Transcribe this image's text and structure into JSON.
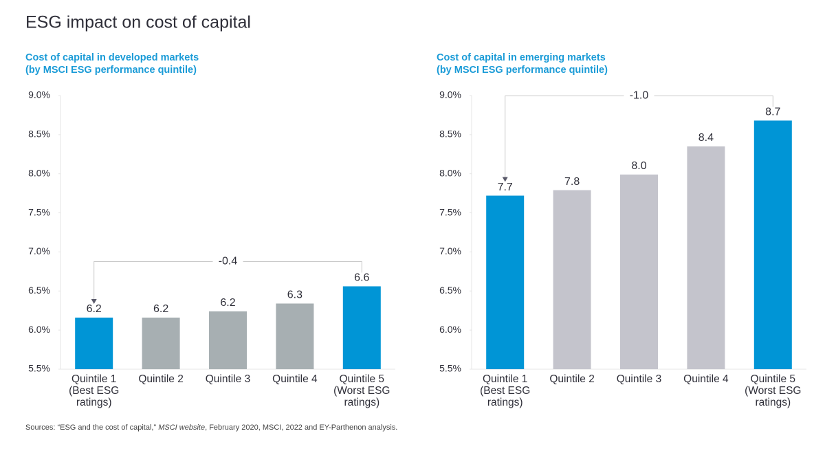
{
  "title": "ESG impact on cost of capital",
  "chart_data": [
    {
      "type": "bar",
      "subtitle": [
        "Cost of capital in developed markets",
        "(by MSCI ESG performance quintile)"
      ],
      "categories": [
        "Quintile 1 (Best ESG ratings)",
        "Quintile 2",
        "Quintile 3",
        "Quintile 4",
        "Quintile 5 (Worst ESG ratings)"
      ],
      "values": [
        6.16,
        6.16,
        6.24,
        6.34,
        6.56
      ],
      "value_labels": [
        "6.2",
        "6.2",
        "6.2",
        "6.3",
        "6.6"
      ],
      "colors": [
        "#0095d6",
        "#a7afb2",
        "#a7afb2",
        "#a7afb2",
        "#0095d6"
      ],
      "ylim": [
        5.5,
        9.0
      ],
      "yticks": [
        {
          "value": 5.5,
          "label": "5.5%"
        },
        {
          "value": 6.0,
          "label": "6.0%"
        },
        {
          "value": 6.5,
          "label": "6.5%"
        },
        {
          "value": 7.0,
          "label": "7.0%"
        },
        {
          "value": 7.5,
          "label": "7.5%"
        },
        {
          "value": 8.0,
          "label": "8.0%"
        },
        {
          "value": 8.5,
          "label": "8.5%"
        },
        {
          "value": 9.0,
          "label": "9.0%"
        }
      ],
      "annotation": "-0.4"
    },
    {
      "type": "bar",
      "subtitle": [
        "Cost of capital in emerging markets",
        "(by MSCI ESG performance quintile)"
      ],
      "categories": [
        "Quintile 1 (Best ESG ratings)",
        "Quintile 2",
        "Quintile 3",
        "Quintile 4",
        "Quintile 5 (Worst ESG ratings)"
      ],
      "values": [
        7.72,
        7.79,
        7.99,
        8.35,
        8.68
      ],
      "value_labels": [
        "7.7",
        "7.8",
        "8.0",
        "8.4",
        "8.7"
      ],
      "colors": [
        "#0095d6",
        "#c4c4cc",
        "#c4c4cc",
        "#c4c4cc",
        "#0095d6"
      ],
      "ylim": [
        5.5,
        9.0
      ],
      "yticks": [
        {
          "value": 5.5,
          "label": "5.5%"
        },
        {
          "value": 6.0,
          "label": "6.0%"
        },
        {
          "value": 6.5,
          "label": "6.5%"
        },
        {
          "value": 7.0,
          "label": "7.0%"
        },
        {
          "value": 7.5,
          "label": "7.5%"
        },
        {
          "value": 8.0,
          "label": "8.0%"
        },
        {
          "value": 8.5,
          "label": "8.5%"
        },
        {
          "value": 9.0,
          "label": "9.0%"
        }
      ],
      "annotation": "-1.0"
    }
  ],
  "source": [
    "Sources: “ESG and the cost of capital,” ",
    "MSCI website",
    ", February 2020, MSCI, 2022 and EY-Parthenon analysis."
  ]
}
